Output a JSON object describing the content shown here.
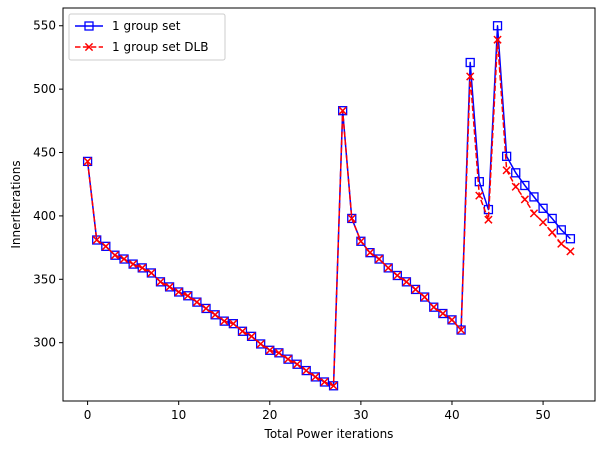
{
  "chart_data": {
    "type": "line",
    "title": "",
    "xlabel": "Total Power iterations",
    "ylabel": "InnerIterations",
    "xlim": [
      -2.7,
      55.7
    ],
    "ylim": [
      254,
      564
    ],
    "xticks": [
      0,
      10,
      20,
      30,
      40,
      50
    ],
    "yticks": [
      300,
      350,
      400,
      450,
      500,
      550
    ],
    "grid": false,
    "legend_position": "top-left",
    "x": [
      0,
      1,
      2,
      3,
      4,
      5,
      6,
      7,
      8,
      9,
      10,
      11,
      12,
      13,
      14,
      15,
      16,
      17,
      18,
      19,
      20,
      21,
      22,
      23,
      24,
      25,
      26,
      27,
      28,
      29,
      30,
      31,
      32,
      33,
      34,
      35,
      36,
      37,
      38,
      39,
      40,
      41,
      42,
      43,
      44,
      45,
      46,
      47,
      48,
      49,
      50,
      51,
      52,
      53
    ],
    "series": [
      {
        "name": "1 group set",
        "color": "#0000ff",
        "line_style": "solid",
        "marker": "square",
        "values": [
          443,
          381,
          376,
          369,
          366,
          362,
          359,
          355,
          348,
          344,
          340,
          337,
          332,
          327,
          322,
          317,
          315,
          309,
          305,
          299,
          294,
          292,
          287,
          283,
          278,
          273,
          269,
          266,
          483,
          398,
          380,
          371,
          366,
          359,
          353,
          348,
          342,
          336,
          328,
          323,
          318,
          310,
          521,
          427,
          405,
          550,
          447,
          434,
          424,
          415,
          406,
          398,
          389,
          382
        ]
      },
      {
        "name": "1 group set DLB",
        "color": "#ff0000",
        "line_style": "dashed",
        "marker": "x",
        "values": [
          443,
          381,
          376,
          369,
          366,
          362,
          359,
          355,
          348,
          344,
          340,
          337,
          332,
          327,
          322,
          317,
          315,
          309,
          305,
          299,
          294,
          292,
          287,
          283,
          278,
          273,
          269,
          266,
          483,
          398,
          380,
          371,
          366,
          359,
          353,
          348,
          342,
          336,
          328,
          323,
          318,
          310,
          510,
          416,
          397,
          539,
          436,
          423,
          413,
          402,
          395,
          387,
          378,
          372
        ]
      }
    ]
  }
}
